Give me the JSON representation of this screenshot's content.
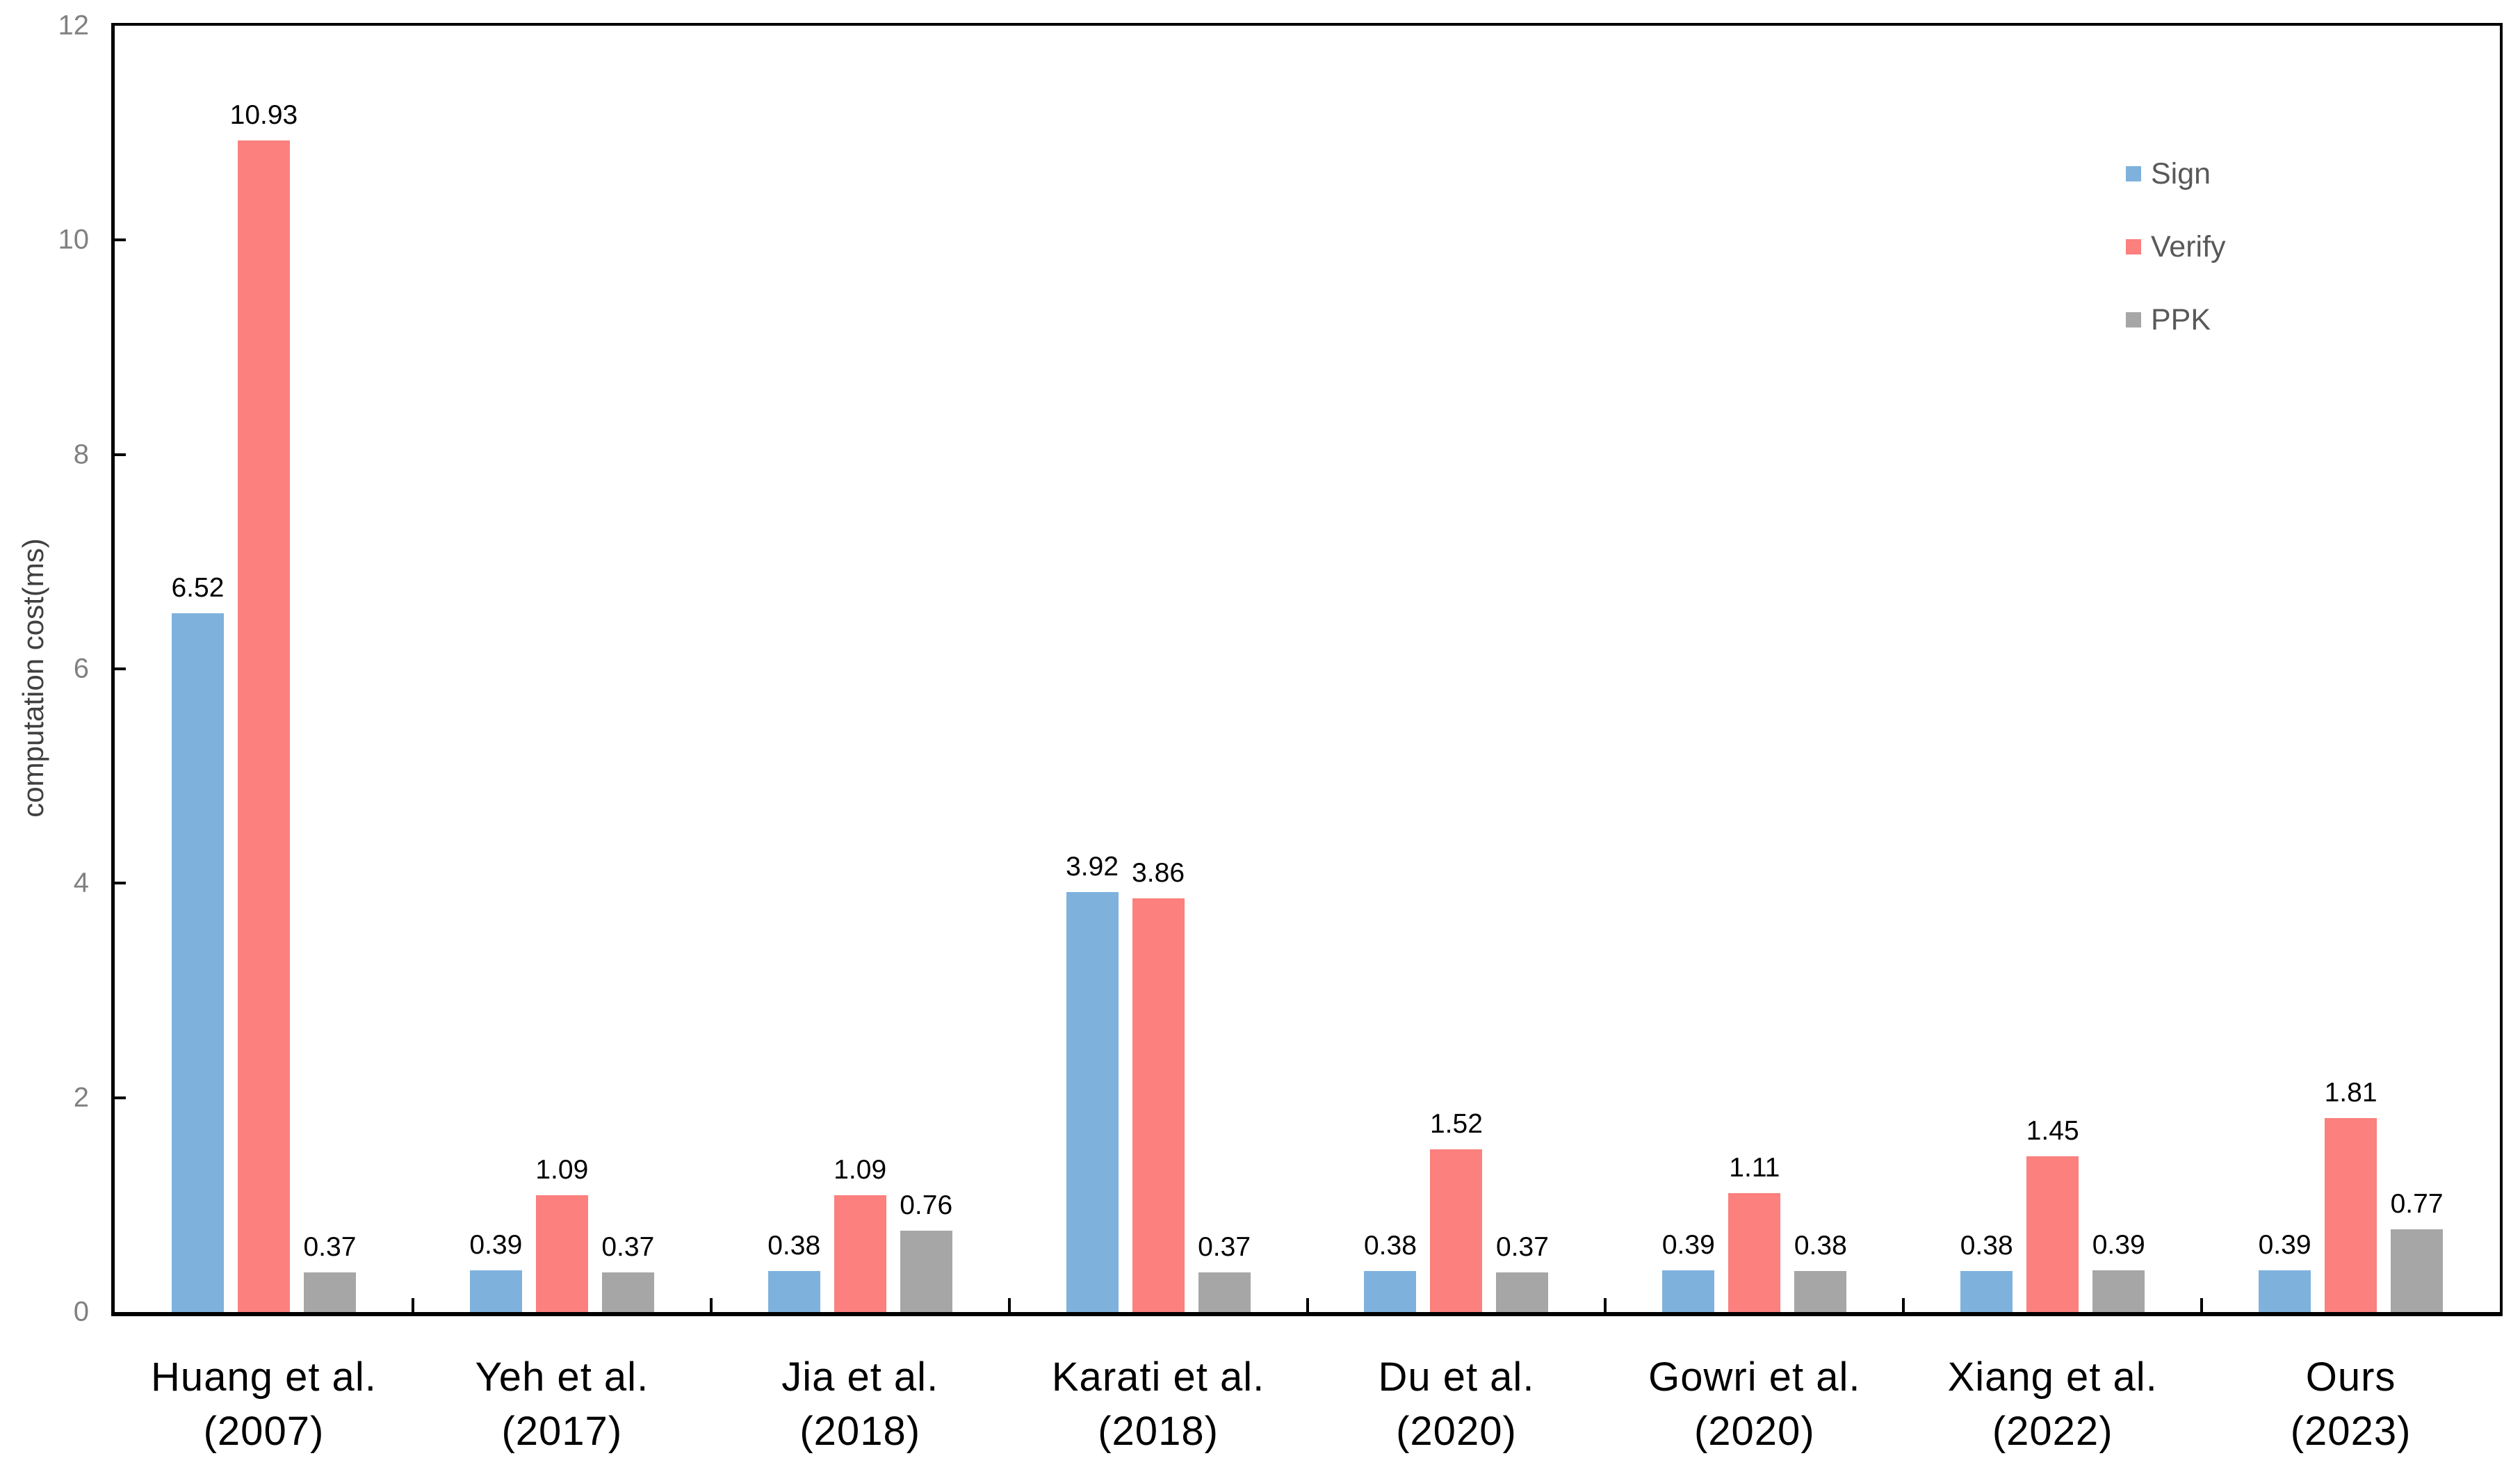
{
  "chart_data": {
    "type": "bar",
    "title": "",
    "ylabel": "computation cost(ms)",
    "xlabel": "",
    "ylim": [
      0,
      12
    ],
    "yticks": [
      0,
      2,
      4,
      6,
      8,
      10,
      12
    ],
    "grid": false,
    "legend_position": "top-right",
    "bar_labels": true,
    "categories": [
      {
        "name": "Huang et al.",
        "year": "(2007)"
      },
      {
        "name": "Yeh et al.",
        "year": "(2017)"
      },
      {
        "name": "Jia et al.",
        "year": "(2018)"
      },
      {
        "name": "Karati et al.",
        "year": "(2018)"
      },
      {
        "name": "Du et al.",
        "year": "(2020)"
      },
      {
        "name": "Gowri et al.",
        "year": "(2020)"
      },
      {
        "name": "Xiang et al.",
        "year": "(2022)"
      },
      {
        "name": "Ours",
        "year": "(2023)"
      }
    ],
    "series": [
      {
        "name": "Sign",
        "color": "#7EB2DD",
        "values": [
          6.52,
          0.39,
          0.38,
          3.92,
          0.38,
          0.39,
          0.38,
          0.39
        ]
      },
      {
        "name": "Verify",
        "color": "#FB807E",
        "values": [
          10.93,
          1.09,
          1.09,
          3.86,
          1.52,
          1.11,
          1.45,
          1.81
        ]
      },
      {
        "name": "PPK",
        "color": "#A6A6A6",
        "values": [
          0.37,
          0.37,
          0.76,
          0.37,
          0.37,
          0.38,
          0.39,
          0.77
        ]
      }
    ],
    "colors": {
      "axis": "#000000",
      "y_tick_label": "#808080",
      "x_tick_label": "#000000",
      "value_label": "#000000",
      "legend_text": "#595959",
      "y_title": "#404040",
      "background": "#ffffff"
    }
  }
}
